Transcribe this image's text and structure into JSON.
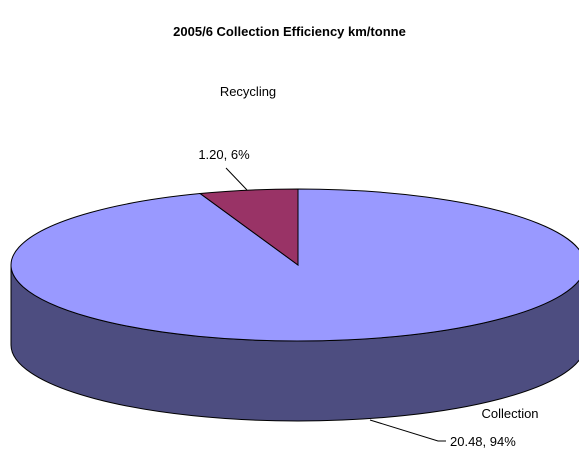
{
  "chart_data": {
    "type": "pie",
    "title": "2005/6 Collection Efficiency km/tonne",
    "style": "3d",
    "slices": [
      {
        "category": "Collection",
        "value": 20.48,
        "percent": "94%",
        "label": "20.48, 94%",
        "color": "#9999ff",
        "side_color": "#4d4d80"
      },
      {
        "category": "Recycling",
        "value": 1.2,
        "percent": "6%",
        "label": "1.20, 6%",
        "color": "#993366",
        "side_color": "#4d1a33"
      }
    ],
    "legend": "none"
  }
}
